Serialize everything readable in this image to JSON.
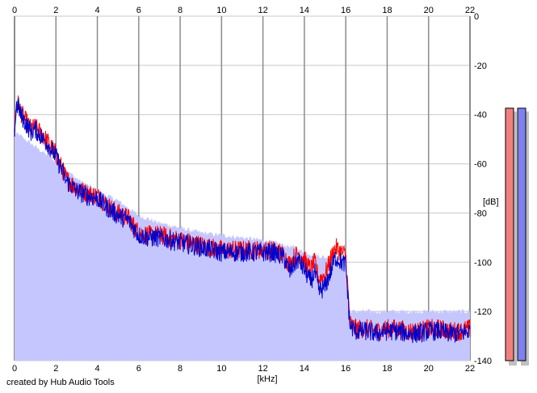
{
  "chart_data": {
    "type": "area",
    "title": "",
    "xlabel": "[kHz]",
    "ylabel": "[dB]",
    "xlim": [
      0,
      22
    ],
    "ylim": [
      -140,
      0
    ],
    "x_ticks": [
      0,
      2,
      4,
      6,
      8,
      10,
      12,
      14,
      16,
      18,
      20,
      22
    ],
    "y_ticks": [
      0,
      -20,
      -40,
      -60,
      -80,
      -100,
      -120,
      -140
    ],
    "grid": true,
    "colors": {
      "fill": "#c6c6ff",
      "left_channel": "#ff0000",
      "right_channel": "#0000cc",
      "grid_minor": "#c8c8c8",
      "grid_major": "#8c8c8c",
      "meter_left": "#f08080",
      "meter_right": "#8080f0",
      "meter_shadow": "#c0c0c0"
    },
    "series": [
      {
        "channel": "left",
        "x": [
          0,
          0.1,
          0.2,
          0.3,
          0.5,
          0.8,
          1.0,
          1.3,
          1.6,
          2.0,
          2.5,
          3.0,
          3.5,
          4.0,
          4.5,
          5.0,
          5.5,
          6.0,
          6.5,
          7.0,
          7.5,
          8.0,
          8.5,
          9.0,
          9.5,
          10.0,
          10.5,
          11.0,
          11.5,
          12.0,
          12.5,
          13.0,
          13.3,
          13.5,
          13.7,
          14.0,
          14.3,
          14.5,
          14.7,
          15.0,
          15.3,
          15.5,
          15.8,
          16.0,
          16.2,
          16.5,
          17.0,
          17.5,
          18.0,
          18.5,
          19.0,
          19.5,
          20.0,
          20.5,
          21.0,
          21.5,
          22.0
        ],
        "values": [
          -45,
          -35,
          -36,
          -39,
          -42,
          -46,
          -45,
          -48,
          -51,
          -56,
          -66,
          -70,
          -72,
          -73,
          -77,
          -80,
          -82,
          -88,
          -89,
          -89,
          -90,
          -91,
          -92,
          -93,
          -94,
          -95,
          -95,
          -95,
          -95,
          -95,
          -95,
          -97,
          -101,
          -98,
          -96,
          -99,
          -103,
          -100,
          -107,
          -105,
          -98,
          -94,
          -96,
          -97,
          -125,
          -127,
          -127,
          -128,
          -127,
          -127,
          -128,
          -128,
          -127,
          -127,
          -128,
          -128,
          -127
        ]
      },
      {
        "channel": "right",
        "x": [
          0,
          0.1,
          0.2,
          0.3,
          0.5,
          0.8,
          1.0,
          1.3,
          1.6,
          2.0,
          2.5,
          3.0,
          3.5,
          4.0,
          4.5,
          5.0,
          5.5,
          6.0,
          6.5,
          7.0,
          7.5,
          8.0,
          8.5,
          9.0,
          9.5,
          10.0,
          10.5,
          11.0,
          11.5,
          12.0,
          12.5,
          13.0,
          13.3,
          13.5,
          13.7,
          14.0,
          14.3,
          14.5,
          14.7,
          15.0,
          15.3,
          15.5,
          15.8,
          16.0,
          16.2,
          16.5,
          17.0,
          17.5,
          18.0,
          18.5,
          19.0,
          19.5,
          20.0,
          20.5,
          21.0,
          21.5,
          22.0
        ],
        "values": [
          -47,
          -36,
          -37,
          -40,
          -43,
          -47,
          -46,
          -49,
          -52,
          -57,
          -67,
          -71,
          -73,
          -74,
          -78,
          -81,
          -83,
          -89,
          -90,
          -90,
          -91,
          -92,
          -93,
          -94,
          -95,
          -96,
          -96,
          -96,
          -96,
          -96,
          -96,
          -98,
          -104,
          -101,
          -99,
          -103,
          -108,
          -104,
          -112,
          -110,
          -103,
          -98,
          -100,
          -101,
          -126,
          -128,
          -128,
          -129,
          -128,
          -128,
          -129,
          -129,
          -128,
          -128,
          -129,
          -129,
          -128
        ]
      }
    ],
    "noise_amplitude_db": 4,
    "fill_envelope": {
      "x": [
        0,
        0.2,
        0.5,
        1.0,
        2.0,
        3.0,
        4.0,
        5.0,
        6.0,
        7.0,
        8.0,
        9.0,
        10.0,
        11.0,
        12.0,
        13.0,
        13.5,
        14.0,
        14.5,
        15.0,
        15.5,
        16.0,
        16.2,
        17.0,
        18.0,
        19.0,
        20.0,
        21.0,
        22.0
      ],
      "values": [
        -48,
        -48,
        -50,
        -53,
        -59,
        -66,
        -71,
        -75,
        -81,
        -84,
        -86,
        -88,
        -89,
        -90,
        -91,
        -93,
        -94,
        -96,
        -97,
        -98,
        -99,
        -100,
        -120,
        -120,
        -120,
        -120,
        -120,
        -120,
        -120
      ]
    },
    "level_meters": [
      {
        "channel": "left",
        "level_db": -19
      },
      {
        "channel": "right",
        "level_db": -19
      }
    ]
  },
  "footer": {
    "credit": "created by Hub Audio Tools"
  }
}
